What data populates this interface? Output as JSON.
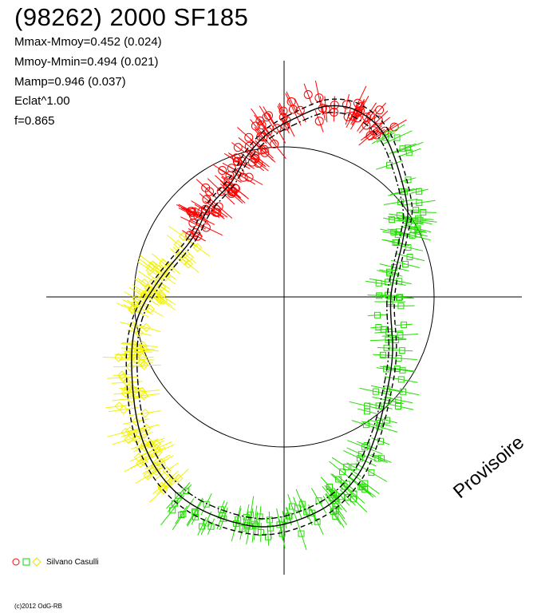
{
  "header": {
    "title": "(98262) 2000 SF185",
    "stats": [
      "Mmax-Mmoy=0.452 (0.024)",
      "Mmoy-Mmin=0.494 (0.021)",
      "Mamp=0.946 (0.037)",
      "Eclat^1.00",
      "f=0.865"
    ]
  },
  "legend": {
    "observer": "Silvano Casulli"
  },
  "watermark": "Provisoire",
  "copyright": "(c)2012 OdG-RB",
  "colors": {
    "red": "#ff0000",
    "green": "#00dd00",
    "yellow": "#ffff00",
    "axis": "#000000"
  },
  "chart_data": {
    "type": "scatter",
    "title": "(98262) 2000 SF185",
    "description_of_encoding": "polar lightcurve: angle = rotational phase, radius = brightness",
    "reference_circle": 1.0,
    "series": [
      {
        "marker": "circle",
        "color": "red",
        "phase_range": [
          0.0,
          0.33
        ]
      },
      {
        "marker": "square",
        "color": "green",
        "phase_range": [
          0.33,
          0.78
        ]
      },
      {
        "marker": "diamond",
        "color": "yellow",
        "phase_range": [
          0.78,
          1.0
        ]
      }
    ],
    "fit_curves": [
      "solid",
      "dashed",
      "dash-dot"
    ]
  }
}
